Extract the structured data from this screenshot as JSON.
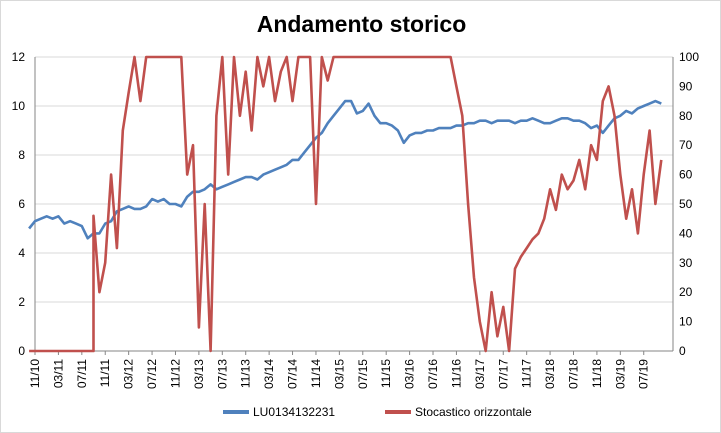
{
  "chart_data": {
    "type": "line",
    "title": "Andamento storico",
    "xlabel": "",
    "ylabel": "",
    "y2label": "",
    "ylim": [
      0,
      12
    ],
    "y2lim": [
      0,
      100
    ],
    "yticks": [
      0,
      2,
      4,
      6,
      8,
      10,
      12
    ],
    "y2ticks": [
      0,
      10,
      20,
      30,
      40,
      50,
      60,
      70,
      80,
      90,
      100
    ],
    "x_ticks": [
      "11/10",
      "03/11",
      "07/11",
      "11/11",
      "03/12",
      "07/12",
      "11/12",
      "03/13",
      "07/13",
      "11/13",
      "03/14",
      "07/14",
      "11/14",
      "03/15",
      "07/15",
      "11/15",
      "03/16",
      "07/16",
      "11/16",
      "03/17",
      "07/17",
      "11/17",
      "03/18",
      "07/18",
      "11/18",
      "03/19",
      "07/19"
    ],
    "grid": "horizontal",
    "legend_position": "bottom",
    "series": [
      {
        "name": "LU0134132231",
        "axis": "left",
        "color": "#4f81bd",
        "points": [
          [
            "2010-10",
            5.0
          ],
          [
            "2010-11",
            5.3
          ],
          [
            "2010-12",
            5.4
          ],
          [
            "2011-01",
            5.5
          ],
          [
            "2011-02",
            5.4
          ],
          [
            "2011-03",
            5.5
          ],
          [
            "2011-04",
            5.2
          ],
          [
            "2011-05",
            5.3
          ],
          [
            "2011-06",
            5.2
          ],
          [
            "2011-07",
            5.1
          ],
          [
            "2011-08",
            4.6
          ],
          [
            "2011-09",
            4.8
          ],
          [
            "2011-10",
            4.8
          ],
          [
            "2011-11",
            5.2
          ],
          [
            "2011-12",
            5.3
          ],
          [
            "2012-01",
            5.7
          ],
          [
            "2012-02",
            5.8
          ],
          [
            "2012-03",
            5.9
          ],
          [
            "2012-04",
            5.8
          ],
          [
            "2012-05",
            5.8
          ],
          [
            "2012-06",
            5.9
          ],
          [
            "2012-07",
            6.2
          ],
          [
            "2012-08",
            6.1
          ],
          [
            "2012-09",
            6.2
          ],
          [
            "2012-10",
            6.0
          ],
          [
            "2012-11",
            6.0
          ],
          [
            "2012-12",
            5.9
          ],
          [
            "2013-01",
            6.3
          ],
          [
            "2013-02",
            6.5
          ],
          [
            "2013-03",
            6.5
          ],
          [
            "2013-04",
            6.6
          ],
          [
            "2013-05",
            6.8
          ],
          [
            "2013-06",
            6.6
          ],
          [
            "2013-07",
            6.7
          ],
          [
            "2013-08",
            6.8
          ],
          [
            "2013-09",
            6.9
          ],
          [
            "2013-10",
            7.0
          ],
          [
            "2013-11",
            7.1
          ],
          [
            "2013-12",
            7.1
          ],
          [
            "2014-01",
            7.0
          ],
          [
            "2014-02",
            7.2
          ],
          [
            "2014-03",
            7.3
          ],
          [
            "2014-04",
            7.4
          ],
          [
            "2014-05",
            7.5
          ],
          [
            "2014-06",
            7.6
          ],
          [
            "2014-07",
            7.8
          ],
          [
            "2014-08",
            7.8
          ],
          [
            "2014-09",
            8.1
          ],
          [
            "2014-10",
            8.4
          ],
          [
            "2014-11",
            8.7
          ],
          [
            "2014-12",
            8.9
          ],
          [
            "2015-01",
            9.3
          ],
          [
            "2015-02",
            9.6
          ],
          [
            "2015-03",
            9.9
          ],
          [
            "2015-04",
            10.2
          ],
          [
            "2015-05",
            10.2
          ],
          [
            "2015-06",
            9.7
          ],
          [
            "2015-07",
            9.8
          ],
          [
            "2015-08",
            10.1
          ],
          [
            "2015-09",
            9.6
          ],
          [
            "2015-10",
            9.3
          ],
          [
            "2015-11",
            9.3
          ],
          [
            "2015-12",
            9.2
          ],
          [
            "2016-01",
            9.0
          ],
          [
            "2016-02",
            8.5
          ],
          [
            "2016-03",
            8.8
          ],
          [
            "2016-04",
            8.9
          ],
          [
            "2016-05",
            8.9
          ],
          [
            "2016-06",
            9.0
          ],
          [
            "2016-07",
            9.0
          ],
          [
            "2016-08",
            9.1
          ],
          [
            "2016-09",
            9.1
          ],
          [
            "2016-10",
            9.1
          ],
          [
            "2016-11",
            9.2
          ],
          [
            "2016-12",
            9.2
          ],
          [
            "2017-01",
            9.3
          ],
          [
            "2017-02",
            9.3
          ],
          [
            "2017-03",
            9.4
          ],
          [
            "2017-04",
            9.4
          ],
          [
            "2017-05",
            9.3
          ],
          [
            "2017-06",
            9.4
          ],
          [
            "2017-07",
            9.4
          ],
          [
            "2017-08",
            9.4
          ],
          [
            "2017-09",
            9.3
          ],
          [
            "2017-10",
            9.4
          ],
          [
            "2017-11",
            9.4
          ],
          [
            "2017-12",
            9.5
          ],
          [
            "2018-01",
            9.4
          ],
          [
            "2018-02",
            9.3
          ],
          [
            "2018-03",
            9.3
          ],
          [
            "2018-04",
            9.4
          ],
          [
            "2018-05",
            9.5
          ],
          [
            "2018-06",
            9.5
          ],
          [
            "2018-07",
            9.4
          ],
          [
            "2018-08",
            9.4
          ],
          [
            "2018-09",
            9.3
          ],
          [
            "2018-10",
            9.1
          ],
          [
            "2018-11",
            9.2
          ],
          [
            "2018-12",
            8.9
          ],
          [
            "2019-01",
            9.2
          ],
          [
            "2019-02",
            9.5
          ],
          [
            "2019-03",
            9.6
          ],
          [
            "2019-04",
            9.8
          ],
          [
            "2019-05",
            9.7
          ],
          [
            "2019-06",
            9.9
          ],
          [
            "2019-07",
            10.0
          ],
          [
            "2019-08",
            10.1
          ],
          [
            "2019-09",
            10.2
          ],
          [
            "2019-10",
            10.1
          ]
        ]
      },
      {
        "name": "Stocastico orizzontale",
        "axis": "right",
        "color": "#c0504d",
        "points": [
          [
            "2010-10",
            0
          ],
          [
            "2011-01",
            0
          ],
          [
            "2011-04",
            0
          ],
          [
            "2011-07",
            0
          ],
          [
            "2011-09",
            0
          ],
          [
            "2011-09",
            46
          ],
          [
            "2011-10",
            20
          ],
          [
            "2011-11",
            30
          ],
          [
            "2011-12",
            60
          ],
          [
            "2012-01",
            35
          ],
          [
            "2012-02",
            75
          ],
          [
            "2012-03",
            88
          ],
          [
            "2012-04",
            100
          ],
          [
            "2012-05",
            85
          ],
          [
            "2012-06",
            100
          ],
          [
            "2012-07",
            100
          ],
          [
            "2012-08",
            100
          ],
          [
            "2012-09",
            100
          ],
          [
            "2012-10",
            100
          ],
          [
            "2012-11",
            100
          ],
          [
            "2012-12",
            100
          ],
          [
            "2013-01",
            60
          ],
          [
            "2013-02",
            70
          ],
          [
            "2013-03",
            8
          ],
          [
            "2013-04",
            50
          ],
          [
            "2013-05",
            0
          ],
          [
            "2013-06",
            80
          ],
          [
            "2013-07",
            100
          ],
          [
            "2013-08",
            60
          ],
          [
            "2013-09",
            100
          ],
          [
            "2013-10",
            80
          ],
          [
            "2013-11",
            95
          ],
          [
            "2013-12",
            75
          ],
          [
            "2014-01",
            100
          ],
          [
            "2014-02",
            90
          ],
          [
            "2014-03",
            100
          ],
          [
            "2014-04",
            85
          ],
          [
            "2014-05",
            95
          ],
          [
            "2014-06",
            100
          ],
          [
            "2014-07",
            85
          ],
          [
            "2014-08",
            100
          ],
          [
            "2014-09",
            100
          ],
          [
            "2014-10",
            100
          ],
          [
            "2014-11",
            50
          ],
          [
            "2014-12",
            100
          ],
          [
            "2015-01",
            92
          ],
          [
            "2015-02",
            100
          ],
          [
            "2015-03",
            100
          ],
          [
            "2015-04",
            100
          ],
          [
            "2015-05",
            100
          ],
          [
            "2015-06",
            100
          ],
          [
            "2015-07",
            100
          ],
          [
            "2015-08",
            100
          ],
          [
            "2015-09",
            100
          ],
          [
            "2015-10",
            100
          ],
          [
            "2015-11",
            100
          ],
          [
            "2015-12",
            100
          ],
          [
            "2016-01",
            100
          ],
          [
            "2016-02",
            100
          ],
          [
            "2016-03",
            100
          ],
          [
            "2016-04",
            100
          ],
          [
            "2016-05",
            100
          ],
          [
            "2016-06",
            100
          ],
          [
            "2016-07",
            100
          ],
          [
            "2016-08",
            100
          ],
          [
            "2016-09",
            100
          ],
          [
            "2016-10",
            100
          ],
          [
            "2016-11",
            90
          ],
          [
            "2016-12",
            80
          ],
          [
            "2017-01",
            50
          ],
          [
            "2017-02",
            25
          ],
          [
            "2017-03",
            10
          ],
          [
            "2017-04",
            0
          ],
          [
            "2017-05",
            20
          ],
          [
            "2017-06",
            5
          ],
          [
            "2017-07",
            15
          ],
          [
            "2017-08",
            0
          ],
          [
            "2017-09",
            28
          ],
          [
            "2017-10",
            32
          ],
          [
            "2017-11",
            35
          ],
          [
            "2017-12",
            38
          ],
          [
            "2018-01",
            40
          ],
          [
            "2018-02",
            45
          ],
          [
            "2018-03",
            55
          ],
          [
            "2018-04",
            48
          ],
          [
            "2018-05",
            60
          ],
          [
            "2018-06",
            55
          ],
          [
            "2018-07",
            58
          ],
          [
            "2018-08",
            65
          ],
          [
            "2018-09",
            55
          ],
          [
            "2018-10",
            70
          ],
          [
            "2018-11",
            65
          ],
          [
            "2018-12",
            85
          ],
          [
            "2019-01",
            90
          ],
          [
            "2019-02",
            80
          ],
          [
            "2019-03",
            60
          ],
          [
            "2019-04",
            45
          ],
          [
            "2019-05",
            55
          ],
          [
            "2019-06",
            40
          ],
          [
            "2019-07",
            60
          ],
          [
            "2019-08",
            75
          ],
          [
            "2019-09",
            50
          ],
          [
            "2019-10",
            65
          ]
        ]
      }
    ]
  }
}
